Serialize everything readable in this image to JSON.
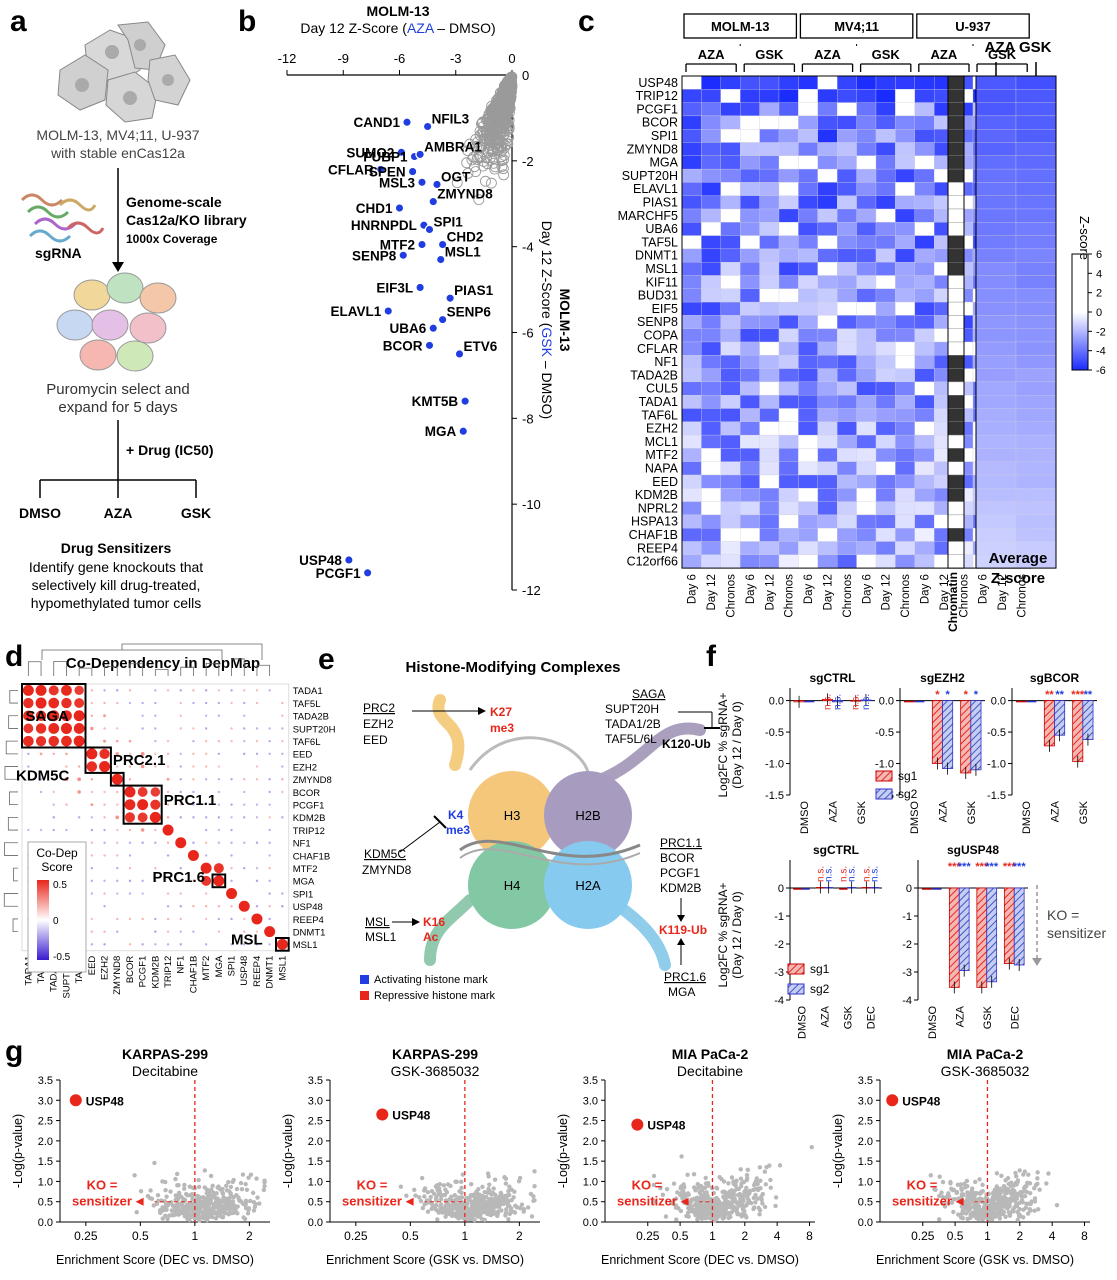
{
  "panel_labels": [
    "a",
    "b",
    "c",
    "d",
    "e",
    "f",
    "g"
  ],
  "colors": {
    "blue": "#1f3de0",
    "red": "#e8261b",
    "grey": "#999999",
    "heat_max": "#1a2bff"
  },
  "panel_a": {
    "cells_text": "MOLM-13, MV4;11, U-937",
    "cells_text2": "with stable enCas12a",
    "lib_line1": "Genome-scale",
    "lib_line2": "Cas12a/KO library",
    "lib_line3": "1000x Coverage",
    "sgrna": "sgRNA",
    "puro1": "Puromycin select and",
    "puro2": "expand for 5 days",
    "drug": "+ Drug (IC50)",
    "arms": [
      "DMSO",
      "AZA",
      "GSK"
    ],
    "sens_title": "Drug Sensitizers",
    "sens1": "Identify gene knockouts that",
    "sens2": "selectively kill drug-treated,",
    "sens3": "hypomethylated tumor cells"
  },
  "panel_b": {
    "title": "MOLM-13",
    "xlabel_pre": "Day 12 Z-Score (",
    "xlabel_drug": "AZA",
    "xlabel_post": " – DMSO)",
    "ylabel_title": "MOLM-13",
    "ylabel_pre": "Day 12 Z-Score (",
    "ylabel_drug": "GSK",
    "ylabel_post": " – DMSO)",
    "xticks": [
      "-12",
      "-9",
      "-6",
      "-3",
      "0"
    ],
    "yticks": [
      "0",
      "-2",
      "-4",
      "-6",
      "-8",
      "-10",
      "-12"
    ]
  },
  "panel_c": {
    "lines": [
      "MOLM-13",
      "MV4;11",
      "U-937"
    ],
    "drugs": [
      "AZA",
      "GSK",
      "AZA",
      "GSK",
      "AZA",
      "GSK"
    ],
    "genes": [
      "USP48",
      "TRIP12",
      "PCGF1",
      "BCOR",
      "SPI1",
      "ZMYND8",
      "MGA",
      "SUPT20H",
      "ELAVL1",
      "PIAS1",
      "MARCHF5",
      "UBA6",
      "TAF5L",
      "DNMT1",
      "MSL1",
      "KIF11",
      "BUD31",
      "EIF5",
      "SENP8",
      "COPA",
      "CFLAR",
      "NF1",
      "TADA2B",
      "CUL5",
      "TADA1",
      "TAF6L",
      "EZH2",
      "MCL1",
      "MTF2",
      "NAPA",
      "EED",
      "KDM2B",
      "NPRL2",
      "HSPA13",
      "CHAF1B",
      "REEP4",
      "C12orf66"
    ],
    "chromatin": [
      1,
      1,
      1,
      1,
      1,
      1,
      1,
      1,
      0,
      0,
      0,
      0,
      1,
      1,
      1,
      0,
      0,
      0,
      0,
      0,
      0,
      1,
      1,
      0,
      1,
      1,
      1,
      0,
      1,
      0,
      1,
      1,
      0,
      0,
      1,
      0,
      0
    ],
    "col_labels": [
      "Day 6",
      "Day 12",
      "Chronos"
    ],
    "chromatin_label": "Chromatin",
    "avg_title": "AZA GSK",
    "avg_label1": "Average",
    "avg_label2": "Z-score",
    "legend_title": "Z-score",
    "legend_ticks": [
      "6",
      "4",
      "2",
      "0",
      "-2",
      "-4",
      "-6"
    ]
  },
  "panel_d": {
    "title": "Co-Dependency in DepMap",
    "genes": [
      "TADA1",
      "TAF5L",
      "TADA2B",
      "SUPT20H",
      "TAF6L",
      "EED",
      "EZH2",
      "ZMYND8",
      "BCOR",
      "PCGF1",
      "KDM2B",
      "TRIP12",
      "NF1",
      "CHAF1B",
      "MTF2",
      "MGA",
      "SPI1",
      "USP48",
      "REEP4",
      "DNMT1",
      "MSL1"
    ],
    "complexes": [
      "SAGA",
      "PRC2.1",
      "KDM5C",
      "PRC1.1",
      "PRC1.6",
      "MSL"
    ],
    "legend_title1": "Co-Dep",
    "legend_title2": "Score",
    "legend_ticks": [
      "0.5",
      "0",
      "-0.5"
    ]
  },
  "panel_e": {
    "title": "Histone-Modifying Complexes",
    "prc2": "PRC2",
    "prc2_members": [
      "EZH2",
      "EED"
    ],
    "k27": "K27",
    "k27b": "me3",
    "saga": "SAGA",
    "saga_members": [
      "SUPT20H",
      "TADA1/2B",
      "TAF5L/6L"
    ],
    "k120": "K120-Ub",
    "k4": "K4",
    "k4b": "me3",
    "kdm5c": "KDM5C",
    "kdm5c_member": "ZMYND8",
    "prc11": "PRC1.1",
    "prc11_members": [
      "BCOR",
      "PCGF1",
      "KDM2B"
    ],
    "k119": "K119-Ub",
    "msl": "MSL",
    "msl_member": "MSL1",
    "k16": "K16",
    "k16b": "Ac",
    "prc16": "PRC1.6",
    "prc16_member": "MGA",
    "histones": [
      "H3",
      "H2B",
      "H4",
      "H2A"
    ],
    "legend": [
      "Activating histone mark",
      "Repressive histone mark"
    ]
  },
  "panel_f": {
    "ylabel1": "Log2FC % sgRNA+",
    "ylabel2": "(Day 12 / Day 0)",
    "top_titles": [
      "sgCTRL",
      "sgEZH2",
      "sgBCOR"
    ],
    "top_ticks": [
      "0.0",
      "-0.5",
      "-1.0",
      "-1.5"
    ],
    "top_x": [
      "DMSO",
      "AZA",
      "GSK"
    ],
    "bottom_titles": [
      "sgCTRL",
      "sgUSP48"
    ],
    "bottom_ticks": [
      "0",
      "-1",
      "-2",
      "-3",
      "-4"
    ],
    "bottom_x": [
      "DMSO",
      "AZA",
      "GSK",
      "DEC"
    ],
    "legend": [
      "sg1",
      "sg2"
    ],
    "ns": "n.s.",
    "ko1": "KO =",
    "ko2": "sensitizer"
  },
  "panel_g": {
    "plots": [
      {
        "title": "KARPAS-299",
        "sub": "Decitabine",
        "xlabel": "Enrichment Score (DEC vs. DMSO)",
        "xticks": [
          "0.25",
          "0.5",
          "1",
          "2"
        ]
      },
      {
        "title": "KARPAS-299",
        "sub": "GSK-3685032",
        "xlabel": "Enrichment Score (GSK vs. DMSO)",
        "xticks": [
          "0.25",
          "0.5",
          "1",
          "2"
        ]
      },
      {
        "title": "MIA PaCa-2",
        "sub": "Decitabine",
        "xlabel": "Enrichment Score (DEC vs. DMSO)",
        "xticks": [
          "0.25",
          "0.5",
          "1",
          "2",
          "4",
          "8"
        ]
      },
      {
        "title": "MIA PaCa-2",
        "sub": "GSK-3685032",
        "xlabel": "Enrichment Score (GSK vs. DMSO)",
        "xticks": [
          "0.25",
          "0.5",
          "1",
          "2",
          "4",
          "8"
        ]
      }
    ],
    "ylabel": "-Log(p-value)",
    "yticks": [
      "0.0",
      "0.5",
      "1.0",
      "1.5",
      "2.0",
      "2.5",
      "3.0",
      "3.5"
    ],
    "gene": "USP48",
    "ko1": "KO =",
    "ko2": "sensitizer"
  },
  "chart_data": [
    {
      "type": "scatter",
      "title": "MOLM-13",
      "xlabel": "Day 12 Z-Score (AZA – DMSO)",
      "ylabel": "Day 12 Z-Score (GSK – DMSO)",
      "xlim": [
        -12,
        0
      ],
      "ylim": [
        -12,
        0
      ],
      "labeled_points": [
        {
          "gene": "CAND1",
          "x": -5.6,
          "y": -1.1
        },
        {
          "gene": "NFIL3",
          "x": -4.5,
          "y": -1.2
        },
        {
          "gene": "SUMO2",
          "x": -5.9,
          "y": -1.8
        },
        {
          "gene": "FUBP1",
          "x": -5.2,
          "y": -1.9
        },
        {
          "gene": "AMBRA1",
          "x": -4.9,
          "y": -1.85
        },
        {
          "gene": "CFLAR",
          "x": -7.0,
          "y": -2.2
        },
        {
          "gene": "SPEN",
          "x": -5.3,
          "y": -2.25
        },
        {
          "gene": "MSL3",
          "x": -4.8,
          "y": -2.5
        },
        {
          "gene": "OGT",
          "x": -4.0,
          "y": -2.55
        },
        {
          "gene": "ZMYND8",
          "x": -4.2,
          "y": -2.95
        },
        {
          "gene": "CHD1",
          "x": -6.0,
          "y": -3.1
        },
        {
          "gene": "HNRNPDL",
          "x": -4.7,
          "y": -3.5
        },
        {
          "gene": "SPI1",
          "x": -4.4,
          "y": -3.6
        },
        {
          "gene": "MTF2",
          "x": -4.8,
          "y": -3.95
        },
        {
          "gene": "CHD2",
          "x": -3.7,
          "y": -3.95
        },
        {
          "gene": "SENP8",
          "x": -5.8,
          "y": -4.2
        },
        {
          "gene": "MSL1",
          "x": -3.8,
          "y": -4.3
        },
        {
          "gene": "EIF3L",
          "x": -4.9,
          "y": -4.95
        },
        {
          "gene": "PIAS1",
          "x": -3.3,
          "y": -5.2
        },
        {
          "gene": "ELAVL1",
          "x": -6.6,
          "y": -5.5
        },
        {
          "gene": "SENP6",
          "x": -3.7,
          "y": -5.7
        },
        {
          "gene": "UBA6",
          "x": -4.2,
          "y": -5.9
        },
        {
          "gene": "BCOR",
          "x": -4.4,
          "y": -6.3
        },
        {
          "gene": "ETV6",
          "x": -2.8,
          "y": -6.5
        },
        {
          "gene": "KMT5B",
          "x": -2.5,
          "y": -7.6
        },
        {
          "gene": "MGA",
          "x": -2.6,
          "y": -8.3
        },
        {
          "gene": "USP48",
          "x": -8.7,
          "y": -11.3
        },
        {
          "gene": "PCGF1",
          "x": -7.7,
          "y": -11.6
        }
      ]
    },
    {
      "type": "bar",
      "title": "sgCTRL",
      "categories": [
        "DMSO",
        "AZA",
        "GSK"
      ],
      "series": [
        {
          "name": "sg1",
          "values": [
            -0.02,
            0.02,
            -0.01
          ]
        },
        {
          "name": "sg2",
          "values": [
            0.0,
            -0.02,
            0.01
          ]
        }
      ],
      "ylim": [
        -1.5,
        0.2
      ]
    },
    {
      "type": "bar",
      "title": "sgEZH2",
      "categories": [
        "DMSO",
        "AZA",
        "GSK"
      ],
      "series": [
        {
          "name": "sg1",
          "values": [
            0.0,
            -1.0,
            -1.15
          ]
        },
        {
          "name": "sg2",
          "values": [
            0.0,
            -1.08,
            -1.1
          ]
        }
      ],
      "ylim": [
        -1.5,
        0.2
      ]
    },
    {
      "type": "bar",
      "title": "sgBCOR",
      "categories": [
        "DMSO",
        "AZA",
        "GSK"
      ],
      "series": [
        {
          "name": "sg1",
          "values": [
            0.0,
            -0.72,
            -0.97
          ]
        },
        {
          "name": "sg2",
          "values": [
            0.0,
            -0.55,
            -0.62
          ]
        }
      ],
      "ylim": [
        -1.5,
        0.2
      ]
    },
    {
      "type": "bar",
      "title": "sgCTRL",
      "categories": [
        "DMSO",
        "AZA",
        "GSK",
        "DEC"
      ],
      "series": [
        {
          "name": "sg1",
          "values": [
            0.0,
            0.02,
            0.0,
            0.02
          ]
        },
        {
          "name": "sg2",
          "values": [
            0.0,
            0.02,
            0.02,
            0.02
          ]
        }
      ],
      "ylim": [
        -4,
        1
      ]
    },
    {
      "type": "bar",
      "title": "sgUSP48",
      "categories": [
        "DMSO",
        "AZA",
        "GSK",
        "DEC"
      ],
      "series": [
        {
          "name": "sg1",
          "values": [
            0.0,
            -3.55,
            -3.55,
            -2.7
          ]
        },
        {
          "name": "sg2",
          "values": [
            0.0,
            -2.95,
            -3.35,
            -2.75
          ]
        }
      ],
      "ylim": [
        -4,
        1
      ]
    },
    {
      "type": "scatter",
      "title": "KARPAS-299 Decitabine",
      "xlabel": "Enrichment Score (DEC vs. DMSO)",
      "ylabel": "-Log(p-value)",
      "ylim": [
        0,
        3.5
      ],
      "highlight": {
        "gene": "USP48",
        "x": 0.22,
        "y": 3.0
      }
    },
    {
      "type": "scatter",
      "title": "KARPAS-299 GSK-3685032",
      "xlabel": "Enrichment Score (GSK vs. DMSO)",
      "ylabel": "-Log(p-value)",
      "ylim": [
        0,
        3.5
      ],
      "highlight": {
        "gene": "USP48",
        "x": 0.35,
        "y": 2.65
      }
    },
    {
      "type": "scatter",
      "title": "MIA PaCa-2 Decitabine",
      "xlabel": "Enrichment Score (DEC vs. DMSO)",
      "ylabel": "-Log(p-value)",
      "ylim": [
        0,
        3.5
      ],
      "highlight": {
        "gene": "USP48",
        "x": 0.2,
        "y": 2.4
      }
    },
    {
      "type": "scatter",
      "title": "MIA PaCa-2 GSK-3685032",
      "xlabel": "Enrichment Score (GSK vs. DMSO)",
      "ylabel": "-Log(p-value)",
      "ylim": [
        0,
        3.5
      ],
      "highlight": {
        "gene": "USP48",
        "x": 0.13,
        "y": 3.0
      }
    }
  ]
}
